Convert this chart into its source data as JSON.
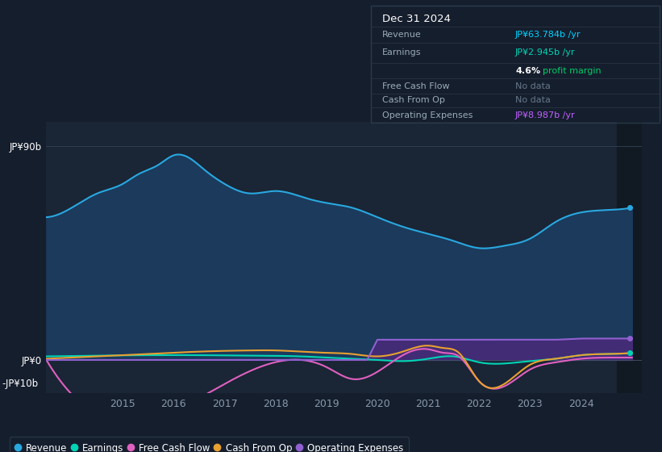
{
  "bg_color": "#151e2d",
  "plot_bg_color": "#1a2535",
  "box_bg_color": "#0d1117",
  "ylabel_top": "JP¥90b",
  "ylabel_zero": "JP¥0",
  "ylabel_neg": "-JP¥10b",
  "x_ticks": [
    2015,
    2016,
    2017,
    2018,
    2019,
    2020,
    2021,
    2022,
    2023,
    2024
  ],
  "ylim": [
    -14,
    100
  ],
  "revenue_color": "#29a8e0",
  "revenue_fill": "#1b3a5c",
  "earnings_color": "#00d4b4",
  "free_cash_flow_color": "#e060c0",
  "cash_from_op_color": "#e8a030",
  "operating_expenses_color": "#9060d0",
  "operating_expenses_fill": "#4a2a7a",
  "legend_bg": "#151e2d",
  "legend_border": "#2a3a4a",
  "title_date": "Dec 31 2024",
  "title_revenue": "JP¥63.784b /yr",
  "title_earnings": "JP¥2.945b /yr",
  "title_margin_pct": "4.6%",
  "title_margin_txt": "profit margin",
  "title_fcf": "No data",
  "title_cfo": "No data",
  "title_opex": "JP¥8.987b /yr",
  "revenue_color_box": "#00d4ff",
  "earnings_color_box": "#00d4b4",
  "opex_color_box": "#c060ff",
  "rev_x": [
    2013.5,
    2014.0,
    2014.5,
    2015.0,
    2015.3,
    2015.7,
    2016.0,
    2016.3,
    2016.6,
    2017.0,
    2017.5,
    2018.0,
    2018.3,
    2018.6,
    2019.0,
    2019.5,
    2020.0,
    2020.5,
    2021.0,
    2021.5,
    2022.0,
    2022.5,
    2023.0,
    2023.5,
    2024.0,
    2024.5,
    2025.0
  ],
  "rev_y": [
    60,
    64,
    70,
    74,
    78,
    82,
    86,
    85,
    80,
    74,
    70,
    71,
    70,
    68,
    66,
    64,
    60,
    56,
    53,
    50,
    47,
    48,
    51,
    58,
    62,
    63,
    64
  ],
  "earn_x": [
    2013.5,
    2014.5,
    2015.5,
    2016.5,
    2017.5,
    2018.5,
    2019.0,
    2019.5,
    2020.0,
    2020.5,
    2021.0,
    2021.5,
    2022.0,
    2022.5,
    2023.0,
    2023.5,
    2024.0,
    2024.5,
    2025.0
  ],
  "earn_y": [
    1.5,
    1.8,
    2.0,
    2.0,
    1.8,
    1.5,
    1.0,
    0.5,
    0.0,
    -0.5,
    0.5,
    1.5,
    -1.0,
    -1.5,
    -0.5,
    0.5,
    2.0,
    2.5,
    2.9
  ],
  "fcf_x": [
    2013.5,
    2018.5,
    2019.0,
    2019.5,
    2020.0,
    2020.5,
    2021.0,
    2021.3,
    2021.6,
    2022.0,
    2022.5,
    2023.0,
    2023.5,
    2024.0,
    2024.5,
    2025.0
  ],
  "fcf_y": [
    0.0,
    0.0,
    -3.0,
    -8.0,
    -5.0,
    2.0,
    4.5,
    3.0,
    1.5,
    -9.0,
    -11.0,
    -4.0,
    -1.0,
    0.5,
    1.0,
    1.0
  ],
  "cfo_x": [
    2013.5,
    2014.5,
    2015.5,
    2016.5,
    2017.5,
    2018.0,
    2018.5,
    2019.0,
    2019.5,
    2020.0,
    2020.5,
    2021.0,
    2021.3,
    2021.6,
    2022.0,
    2022.5,
    2023.0,
    2023.5,
    2024.0,
    2024.5,
    2025.0
  ],
  "cfo_y": [
    0.5,
    1.5,
    2.5,
    3.5,
    4.0,
    4.0,
    3.5,
    3.0,
    2.5,
    1.5,
    3.5,
    6.0,
    5.0,
    3.0,
    -9.0,
    -10.0,
    -2.0,
    0.5,
    2.0,
    2.5,
    3.0
  ],
  "opex_x": [
    2013.5,
    2019.8,
    2020.0,
    2020.5,
    2021.0,
    2021.5,
    2022.0,
    2022.5,
    2023.0,
    2023.5,
    2024.0,
    2024.5,
    2025.0
  ],
  "opex_y": [
    0.0,
    0.0,
    8.5,
    8.5,
    8.5,
    8.5,
    8.5,
    8.5,
    8.5,
    8.5,
    9.0,
    9.0,
    9.0
  ]
}
